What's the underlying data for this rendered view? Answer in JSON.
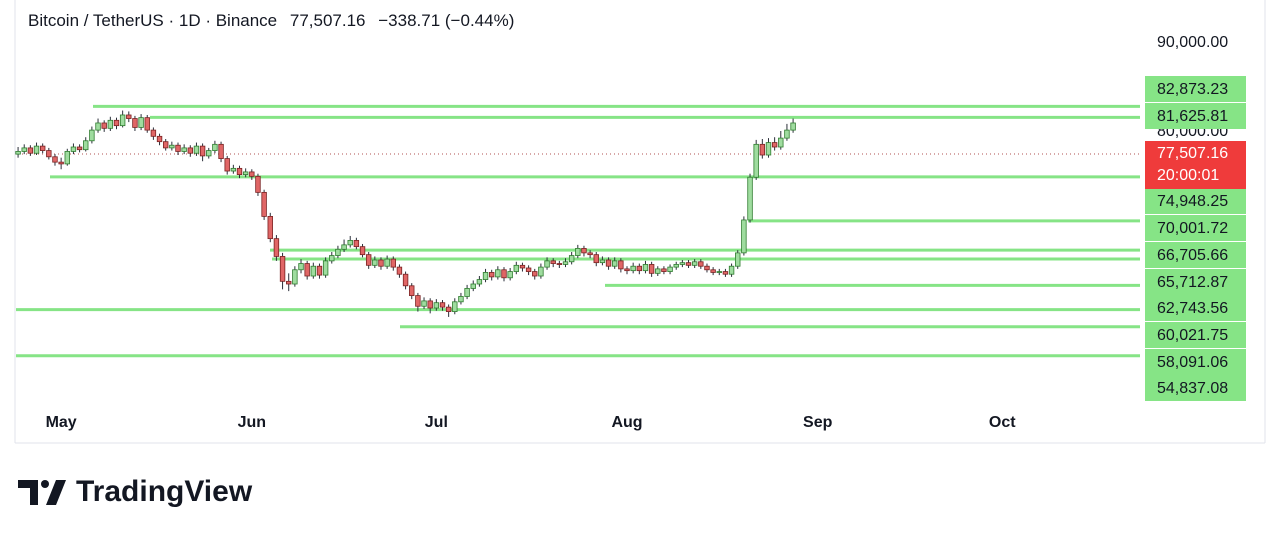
{
  "chart_data": {
    "type": "candlestick",
    "title": "Bitcoin / TetherUS · 1D · Binance",
    "change": "−338.71 (−0.44%)",
    "countdown": "20:00:01",
    "brand": "TradingView",
    "up_color": "#9fdc9f",
    "down_color": "#e06666",
    "level_color": "#86e486",
    "price_color": "#ef3b3b",
    "xlim": [
      -0.5,
      182.4
    ],
    "xticks": [
      {
        "value": 7,
        "label": "May"
      },
      {
        "value": 38,
        "label": "Jun"
      },
      {
        "value": 68,
        "label": "Jul"
      },
      {
        "value": 99,
        "label": "Aug"
      },
      {
        "value": 130,
        "label": "Sep"
      },
      {
        "value": 160,
        "label": "Oct"
      }
    ],
    "ylim": [
      49300,
      93700
    ],
    "yticks": [
      {
        "value": 90000,
        "label": "90,000.00"
      },
      {
        "value": 80000,
        "label": "80,000.00"
      }
    ],
    "price_line": {
      "value": 77507.16,
      "label": "77,507.16"
    },
    "levels": [
      {
        "value": 82873.23,
        "label": "82,873.23"
      },
      {
        "value": 81625.81,
        "label": "81,625.81"
      },
      {
        "value": 74948.25,
        "label": "74,948.25"
      },
      {
        "value": 70001.72,
        "label": "70,001.72"
      },
      {
        "value": 66705.66,
        "label": "66,705.66"
      },
      {
        "value": 65712.87,
        "label": "65,712.87"
      },
      {
        "value": 62743.56,
        "label": "62,743.56"
      },
      {
        "value": 60021.75,
        "label": "60,021.75"
      },
      {
        "value": 58091.06,
        "label": "58,091.06"
      },
      {
        "value": 54837.08,
        "label": "54,837.08"
      }
    ],
    "candles": [
      [
        77500,
        78300,
        77100,
        77800
      ],
      [
        77800,
        78600,
        77500,
        78200
      ],
      [
        78200,
        78500,
        77300,
        77600
      ],
      [
        77600,
        78800,
        77400,
        78400
      ],
      [
        78400,
        78700,
        77600,
        77900
      ],
      [
        77900,
        78200,
        76900,
        77200
      ],
      [
        77200,
        77500,
        76200,
        76600
      ],
      [
        76600,
        77100,
        75800,
        76400
      ],
      [
        76400,
        78100,
        76200,
        77800
      ],
      [
        77800,
        78700,
        77500,
        78300
      ],
      [
        78300,
        78600,
        77700,
        78000
      ],
      [
        78000,
        79400,
        77800,
        79000
      ],
      [
        79000,
        80600,
        78700,
        80200
      ],
      [
        80200,
        81500,
        79900,
        81000
      ],
      [
        81000,
        81300,
        80000,
        80400
      ],
      [
        80400,
        81700,
        80100,
        81300
      ],
      [
        81300,
        81600,
        80300,
        80700
      ],
      [
        80700,
        82400,
        80500,
        81900
      ],
      [
        81900,
        82300,
        81100,
        81500
      ],
      [
        81500,
        81800,
        80100,
        80500
      ],
      [
        80500,
        82000,
        80200,
        81600
      ],
      [
        81600,
        81900,
        79900,
        80200
      ],
      [
        80200,
        80500,
        79100,
        79500
      ],
      [
        79500,
        79800,
        78500,
        78900
      ],
      [
        78900,
        79200,
        77900,
        78200
      ],
      [
        78200,
        78900,
        77900,
        78500
      ],
      [
        78500,
        78800,
        77400,
        77800
      ],
      [
        77800,
        78600,
        77500,
        78200
      ],
      [
        78200,
        78500,
        77200,
        77600
      ],
      [
        77600,
        78800,
        77300,
        78400
      ],
      [
        78400,
        78700,
        76700,
        77300
      ],
      [
        77300,
        78200,
        77000,
        77900
      ],
      [
        77900,
        79000,
        77600,
        78600
      ],
      [
        78600,
        78900,
        76600,
        77000
      ],
      [
        77000,
        77300,
        75200,
        75600
      ],
      [
        75600,
        76300,
        75300,
        75900
      ],
      [
        75900,
        76200,
        74800,
        75200
      ],
      [
        75200,
        75900,
        74900,
        75500
      ],
      [
        75500,
        75800,
        74600,
        75000
      ],
      [
        75000,
        75300,
        72800,
        73200
      ],
      [
        73200,
        73500,
        70100,
        70500
      ],
      [
        70500,
        70900,
        67600,
        68000
      ],
      [
        68000,
        68400,
        65500,
        66000
      ],
      [
        66000,
        66400,
        62300,
        63200
      ],
      [
        63200,
        64100,
        62100,
        62900
      ],
      [
        62900,
        64900,
        62600,
        64500
      ],
      [
        64500,
        65700,
        64100,
        65200
      ],
      [
        65200,
        65500,
        63400,
        63800
      ],
      [
        63800,
        65300,
        63500,
        64900
      ],
      [
        64900,
        65200,
        63500,
        63900
      ],
      [
        63900,
        65900,
        63600,
        65500
      ],
      [
        65500,
        66500,
        65200,
        66100
      ],
      [
        66100,
        67200,
        65800,
        66800
      ],
      [
        66800,
        67900,
        66500,
        67300
      ],
      [
        67300,
        68300,
        67000,
        67800
      ],
      [
        67800,
        68100,
        66800,
        67100
      ],
      [
        67100,
        67400,
        65900,
        66200
      ],
      [
        66200,
        66500,
        64600,
        65000
      ],
      [
        65000,
        66000,
        64700,
        65600
      ],
      [
        65600,
        65900,
        64500,
        64900
      ],
      [
        64900,
        66100,
        64600,
        65700
      ],
      [
        65700,
        66000,
        64400,
        64800
      ],
      [
        64800,
        65100,
        63600,
        64000
      ],
      [
        64000,
        64300,
        62300,
        62700
      ],
      [
        62700,
        63000,
        61200,
        61600
      ],
      [
        61600,
        61900,
        59800,
        60400
      ],
      [
        60400,
        61400,
        60100,
        61000
      ],
      [
        61000,
        61300,
        59600,
        60200
      ],
      [
        60200,
        61200,
        59900,
        60800
      ],
      [
        60800,
        61100,
        59900,
        60300
      ],
      [
        60300,
        60600,
        59200,
        59800
      ],
      [
        59800,
        61300,
        59500,
        60900
      ],
      [
        60900,
        61900,
        60600,
        61500
      ],
      [
        61500,
        62800,
        61200,
        62400
      ],
      [
        62400,
        63300,
        62100,
        62900
      ],
      [
        62900,
        63800,
        62600,
        63400
      ],
      [
        63400,
        64600,
        63100,
        64200
      ],
      [
        64200,
        64500,
        63300,
        63700
      ],
      [
        63700,
        64900,
        63400,
        64500
      ],
      [
        64500,
        64800,
        63200,
        63600
      ],
      [
        63600,
        64700,
        63300,
        64300
      ],
      [
        64300,
        65400,
        64000,
        65000
      ],
      [
        65000,
        65300,
        64300,
        64700
      ],
      [
        64700,
        65000,
        63900,
        64300
      ],
      [
        64300,
        64600,
        63400,
        63800
      ],
      [
        63800,
        65200,
        63500,
        64800
      ],
      [
        64800,
        65900,
        64500,
        65500
      ],
      [
        65500,
        65800,
        64800,
        65200
      ],
      [
        65200,
        65500,
        64700,
        65100
      ],
      [
        65100,
        65800,
        64800,
        65400
      ],
      [
        65400,
        66500,
        65100,
        66100
      ],
      [
        66100,
        67300,
        65800,
        66900
      ],
      [
        66900,
        67200,
        66000,
        66400
      ],
      [
        66400,
        66700,
        65800,
        66200
      ],
      [
        66200,
        66500,
        64900,
        65300
      ],
      [
        65300,
        66000,
        65000,
        65600
      ],
      [
        65600,
        65900,
        64500,
        64900
      ],
      [
        64900,
        65900,
        64600,
        65500
      ],
      [
        65500,
        65800,
        64200,
        64600
      ],
      [
        64600,
        64900,
        64000,
        64400
      ],
      [
        64400,
        65300,
        64100,
        64900
      ],
      [
        64900,
        65200,
        64000,
        64400
      ],
      [
        64400,
        65500,
        64100,
        65100
      ],
      [
        65100,
        65400,
        63700,
        64100
      ],
      [
        64100,
        64900,
        63800,
        64600
      ],
      [
        64600,
        64900,
        64000,
        64300
      ],
      [
        64300,
        65100,
        64000,
        64800
      ],
      [
        64800,
        65400,
        64500,
        65100
      ],
      [
        65100,
        65600,
        64800,
        65300
      ],
      [
        65300,
        65600,
        64700,
        65000
      ],
      [
        65000,
        65700,
        64700,
        65400
      ],
      [
        65400,
        65700,
        64600,
        64900
      ],
      [
        64900,
        65200,
        64200,
        64500
      ],
      [
        64500,
        64800,
        63900,
        64200
      ],
      [
        64200,
        64600,
        63900,
        64300
      ],
      [
        64300,
        64600,
        63700,
        64000
      ],
      [
        64000,
        65200,
        63700,
        64900
      ],
      [
        64900,
        66700,
        64600,
        66400
      ],
      [
        66400,
        70500,
        66100,
        70100
      ],
      [
        70100,
        75300,
        69800,
        74900
      ],
      [
        74900,
        79100,
        74600,
        78600
      ],
      [
        78600,
        79200,
        77000,
        77400
      ],
      [
        77400,
        79300,
        77100,
        78800
      ],
      [
        78800,
        79400,
        77900,
        78300
      ],
      [
        78300,
        80100,
        78000,
        79300
      ],
      [
        79300,
        80900,
        79000,
        80200
      ],
      [
        80200,
        81500,
        79900,
        81000
      ]
    ]
  }
}
